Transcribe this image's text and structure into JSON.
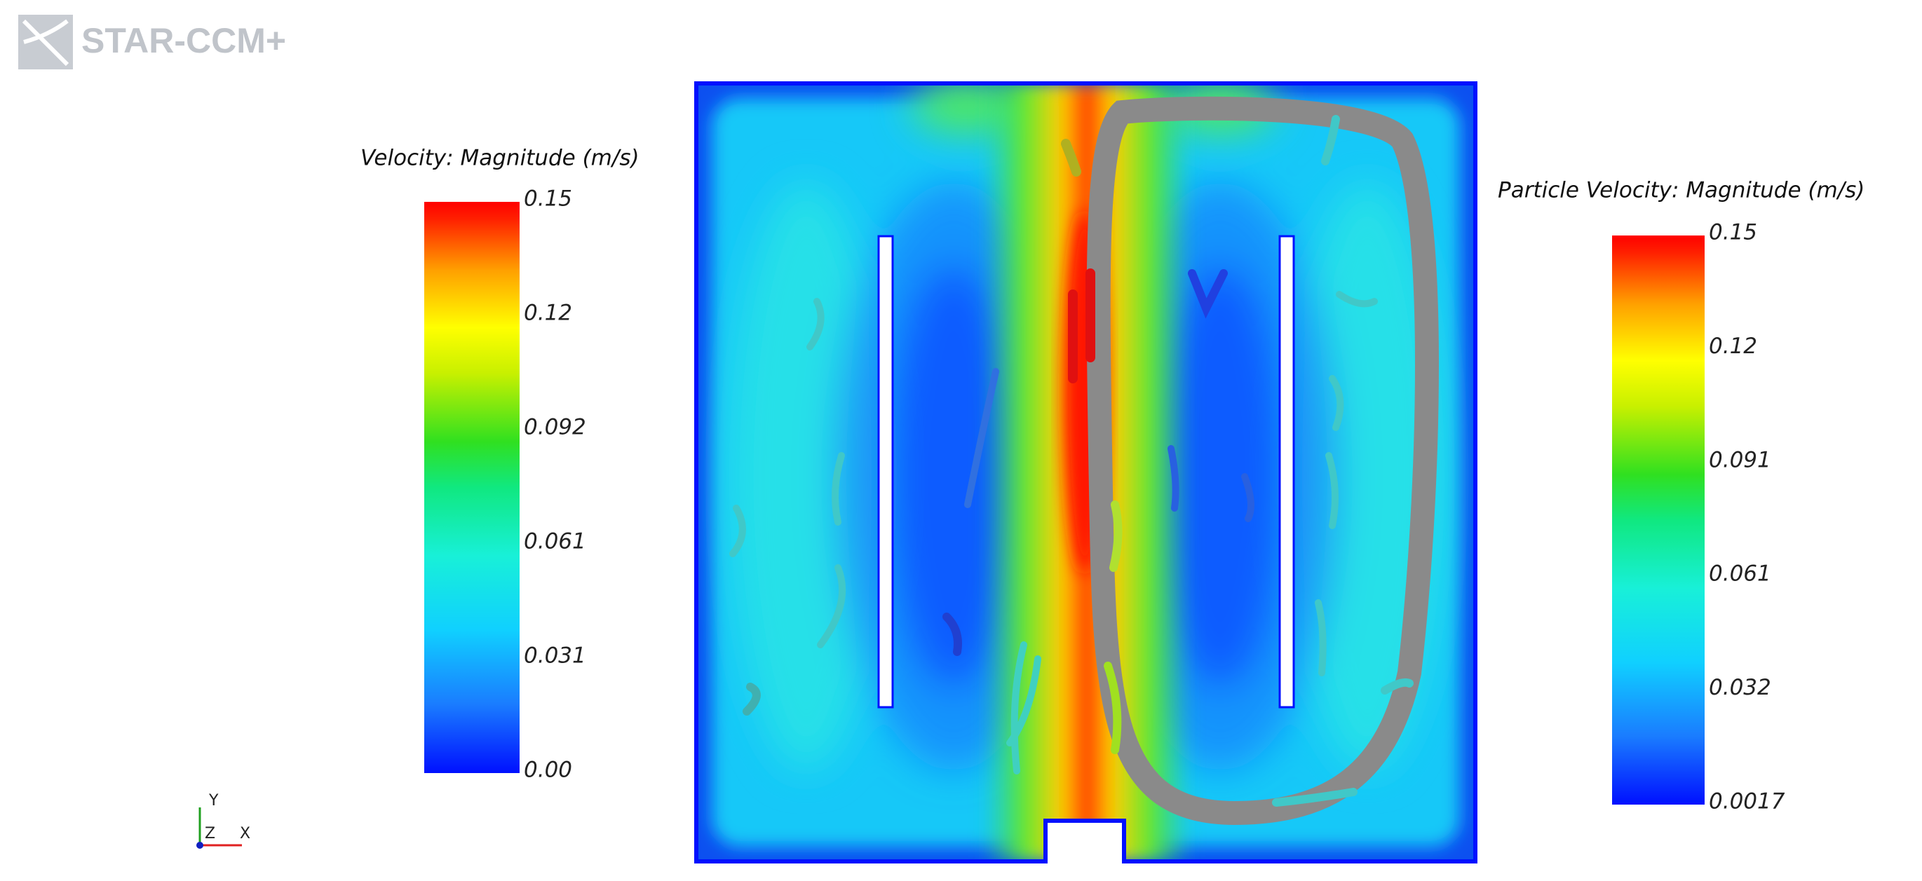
{
  "logo": "STAR-CCM+",
  "legends": [
    {
      "title": "Velocity: Magnitude (m/s)",
      "labels": [
        "0.15",
        "0.12",
        "0.092",
        "0.061",
        "0.031",
        "0.00"
      ]
    },
    {
      "title": "Particle Velocity: Magnitude (m/s)",
      "labels": [
        "0.15",
        "0.12",
        "0.091",
        "0.061",
        "0.032",
        "0.0017"
      ]
    }
  ],
  "axes_triad": {
    "y": "Y",
    "z": "Z",
    "x": "X"
  }
}
